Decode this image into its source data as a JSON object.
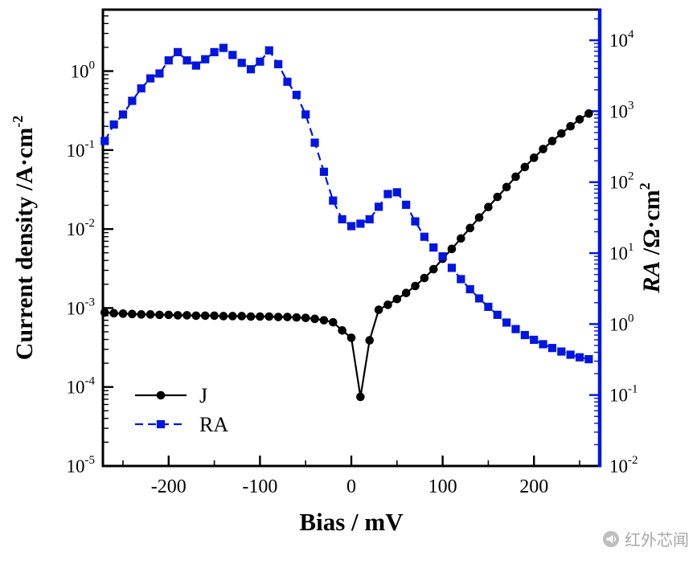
{
  "chart_data": {
    "type": "line",
    "title": "",
    "xlabel": "Bias / mV",
    "ylabel_left": "Current density /A·cm⁻²",
    "ylabel_right": "RA /Ω·cm²",
    "grid": false,
    "axes": {
      "x": {
        "min": -272,
        "max": 272,
        "ticks": [
          -200,
          -100,
          0,
          100,
          200
        ],
        "minor_ticks": [
          -250,
          -150,
          -50,
          50,
          150,
          250
        ],
        "label": "Bias / mV"
      },
      "left": {
        "min": 1e-05,
        "max": 6,
        "tick_exponents": [
          -5,
          -4,
          -3,
          -2,
          -1,
          0
        ],
        "label_main": "Current density /A·cm",
        "label_sup": "-2",
        "color": "#000000"
      },
      "right": {
        "min": 0.01,
        "max": 27000,
        "tick_exponents": [
          -2,
          -1,
          0,
          1,
          2,
          3,
          4
        ],
        "label_italic": "RA",
        "label_rest": " /Ω·cm",
        "label_sup": "2",
        "color": "#0016e0"
      }
    },
    "series": [
      {
        "name": "J",
        "axis": "left",
        "color": "#000000",
        "marker": "circle",
        "linestyle": "solid",
        "x": [
          -270,
          -260,
          -250,
          -240,
          -230,
          -220,
          -210,
          -200,
          -190,
          -180,
          -170,
          -160,
          -150,
          -140,
          -130,
          -120,
          -110,
          -100,
          -90,
          -80,
          -70,
          -60,
          -50,
          -40,
          -30,
          -20,
          -10,
          0,
          10,
          20,
          30,
          40,
          50,
          60,
          70,
          80,
          90,
          100,
          110,
          120,
          130,
          140,
          150,
          160,
          170,
          180,
          190,
          200,
          210,
          220,
          230,
          240,
          250,
          260
        ],
        "y": [
          0.00088,
          0.00086,
          0.00085,
          0.00084,
          0.00083,
          0.00083,
          0.00082,
          0.00082,
          0.00081,
          0.00081,
          0.0008,
          0.0008,
          0.0008,
          0.00079,
          0.00079,
          0.00079,
          0.00078,
          0.00078,
          0.00078,
          0.00077,
          0.00077,
          0.00076,
          0.00075,
          0.00073,
          0.0007,
          0.00066,
          0.00052,
          0.00042,
          7.5e-05,
          0.00039,
          0.00095,
          0.0011,
          0.0013,
          0.00155,
          0.0019,
          0.0024,
          0.0031,
          0.0042,
          0.0056,
          0.0076,
          0.0103,
          0.014,
          0.019,
          0.0255,
          0.034,
          0.046,
          0.061,
          0.08,
          0.103,
          0.13,
          0.162,
          0.2,
          0.245,
          0.29
        ]
      },
      {
        "name": "RA",
        "axis": "right",
        "color": "#0016e0",
        "marker": "square",
        "linestyle": "dashed",
        "x": [
          -270,
          -260,
          -250,
          -240,
          -230,
          -220,
          -210,
          -200,
          -190,
          -180,
          -170,
          -160,
          -150,
          -140,
          -130,
          -120,
          -110,
          -100,
          -90,
          -80,
          -70,
          -60,
          -50,
          -40,
          -30,
          -20,
          -10,
          0,
          10,
          20,
          30,
          40,
          50,
          60,
          70,
          80,
          90,
          100,
          110,
          120,
          130,
          140,
          150,
          160,
          170,
          180,
          190,
          200,
          210,
          220,
          230,
          240,
          250,
          260
        ],
        "y": [
          380,
          650,
          900,
          1400,
          2100,
          2900,
          3400,
          5200,
          6800,
          5200,
          4400,
          5400,
          6800,
          7800,
          6200,
          4800,
          3900,
          5000,
          7200,
          4600,
          2600,
          1700,
          900,
          360,
          140,
          55,
          30,
          24,
          26,
          30,
          45,
          68,
          72,
          48,
          28,
          17,
          12,
          9,
          6.2,
          4.3,
          3.1,
          2.3,
          1.75,
          1.35,
          1.05,
          0.85,
          0.7,
          0.6,
          0.52,
          0.46,
          0.41,
          0.37,
          0.34,
          0.32
        ]
      }
    ],
    "legend": {
      "position": "lower-left",
      "entries": [
        "J",
        "RA"
      ]
    }
  },
  "watermark": {
    "text": "红外芯闻",
    "icon": "megaphone-icon"
  }
}
